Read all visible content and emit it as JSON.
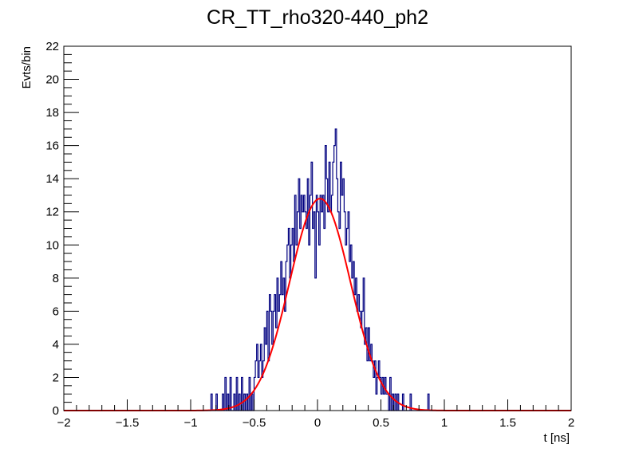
{
  "chart_data": {
    "type": "histogram",
    "title": "CR_TT_rho320-440_ph2",
    "xlabel": "t [ns]",
    "ylabel": "Evts/bin",
    "xlim": [
      -2,
      2
    ],
    "ylim": [
      0,
      22
    ],
    "x_ticks": [
      "−2",
      "−1.5",
      "−1",
      "−0.5",
      "0",
      "0.5",
      "1",
      "1.5",
      "2"
    ],
    "x_tick_values": [
      -2,
      -1.5,
      -1,
      -0.5,
      0,
      0.5,
      1,
      1.5,
      2
    ],
    "y_ticks": [
      "0",
      "2",
      "4",
      "6",
      "8",
      "10",
      "12",
      "14",
      "16",
      "18",
      "20",
      "22"
    ],
    "y_tick_values": [
      0,
      2,
      4,
      6,
      8,
      10,
      12,
      14,
      16,
      18,
      20,
      22
    ],
    "grid": false,
    "histogram_color": "#000080",
    "fit_color": "#ff0000",
    "series": [
      {
        "kind": "histogram",
        "bin_width": 0.01,
        "bins": [
          [
            -0.84,
            1
          ],
          [
            -0.8,
            1
          ],
          [
            -0.75,
            1
          ],
          [
            -0.73,
            2
          ],
          [
            -0.71,
            1
          ],
          [
            -0.69,
            2
          ],
          [
            -0.66,
            1
          ],
          [
            -0.64,
            2
          ],
          [
            -0.62,
            1
          ],
          [
            -0.6,
            2
          ],
          [
            -0.58,
            1
          ],
          [
            -0.56,
            1
          ],
          [
            -0.54,
            2
          ],
          [
            -0.52,
            1
          ],
          [
            -0.5,
            2
          ],
          [
            -0.49,
            3
          ],
          [
            -0.48,
            4
          ],
          [
            -0.47,
            2
          ],
          [
            -0.46,
            3
          ],
          [
            -0.45,
            4
          ],
          [
            -0.44,
            2
          ],
          [
            -0.43,
            3
          ],
          [
            -0.42,
            5
          ],
          [
            -0.41,
            4
          ],
          [
            -0.4,
            6
          ],
          [
            -0.39,
            3
          ],
          [
            -0.38,
            7
          ],
          [
            -0.37,
            6
          ],
          [
            -0.36,
            4
          ],
          [
            -0.35,
            6
          ],
          [
            -0.34,
            7
          ],
          [
            -0.33,
            5
          ],
          [
            -0.32,
            8
          ],
          [
            -0.31,
            6
          ],
          [
            -0.3,
            7
          ],
          [
            -0.29,
            9
          ],
          [
            -0.28,
            7
          ],
          [
            -0.27,
            8
          ],
          [
            -0.26,
            6
          ],
          [
            -0.25,
            9
          ],
          [
            -0.24,
            10
          ],
          [
            -0.23,
            11
          ],
          [
            -0.22,
            8
          ],
          [
            -0.21,
            10
          ],
          [
            -0.2,
            11
          ],
          [
            -0.19,
            9
          ],
          [
            -0.18,
            13
          ],
          [
            -0.17,
            10
          ],
          [
            -0.16,
            12
          ],
          [
            -0.15,
            14
          ],
          [
            -0.14,
            11
          ],
          [
            -0.13,
            13
          ],
          [
            -0.12,
            12
          ],
          [
            -0.11,
            13
          ],
          [
            -0.1,
            12
          ],
          [
            -0.09,
            11
          ],
          [
            -0.08,
            14
          ],
          [
            -0.07,
            10
          ],
          [
            -0.06,
            13
          ],
          [
            -0.05,
            15
          ],
          [
            -0.04,
            11
          ],
          [
            -0.03,
            12
          ],
          [
            -0.02,
            8
          ],
          [
            -0.01,
            13
          ],
          [
            0.0,
            12
          ],
          [
            0.01,
            10
          ],
          [
            0.02,
            13
          ],
          [
            0.03,
            12
          ],
          [
            0.04,
            13
          ],
          [
            0.05,
            11
          ],
          [
            0.06,
            16
          ],
          [
            0.07,
            14
          ],
          [
            0.08,
            12
          ],
          [
            0.09,
            15
          ],
          [
            0.1,
            12
          ],
          [
            0.11,
            13
          ],
          [
            0.12,
            15
          ],
          [
            0.13,
            16
          ],
          [
            0.14,
            17
          ],
          [
            0.15,
            14
          ],
          [
            0.16,
            12
          ],
          [
            0.17,
            11
          ],
          [
            0.18,
            15
          ],
          [
            0.19,
            13
          ],
          [
            0.2,
            14
          ],
          [
            0.21,
            12
          ],
          [
            0.22,
            10
          ],
          [
            0.23,
            11
          ],
          [
            0.24,
            12
          ],
          [
            0.25,
            9
          ],
          [
            0.26,
            10
          ],
          [
            0.27,
            8
          ],
          [
            0.28,
            9
          ],
          [
            0.29,
            7
          ],
          [
            0.3,
            8
          ],
          [
            0.31,
            6
          ],
          [
            0.32,
            7
          ],
          [
            0.33,
            6
          ],
          [
            0.34,
            5
          ],
          [
            0.35,
            6
          ],
          [
            0.36,
            8
          ],
          [
            0.37,
            4
          ],
          [
            0.38,
            5
          ],
          [
            0.39,
            3
          ],
          [
            0.4,
            5
          ],
          [
            0.41,
            3
          ],
          [
            0.42,
            4
          ],
          [
            0.43,
            3
          ],
          [
            0.44,
            2
          ],
          [
            0.45,
            3
          ],
          [
            0.46,
            1
          ],
          [
            0.47,
            2
          ],
          [
            0.48,
            3
          ],
          [
            0.49,
            2
          ],
          [
            0.5,
            1
          ],
          [
            0.51,
            2
          ],
          [
            0.52,
            1
          ],
          [
            0.53,
            2
          ],
          [
            0.54,
            1
          ],
          [
            0.55,
            1
          ],
          [
            0.57,
            2
          ],
          [
            0.59,
            1
          ],
          [
            0.61,
            1
          ],
          [
            0.63,
            1
          ],
          [
            0.67,
            1
          ],
          [
            0.73,
            1
          ],
          [
            0.87,
            1
          ]
        ]
      },
      {
        "kind": "gaussian_fit",
        "amplitude": 12.8,
        "mean": 0.02,
        "sigma": 0.24
      }
    ]
  }
}
